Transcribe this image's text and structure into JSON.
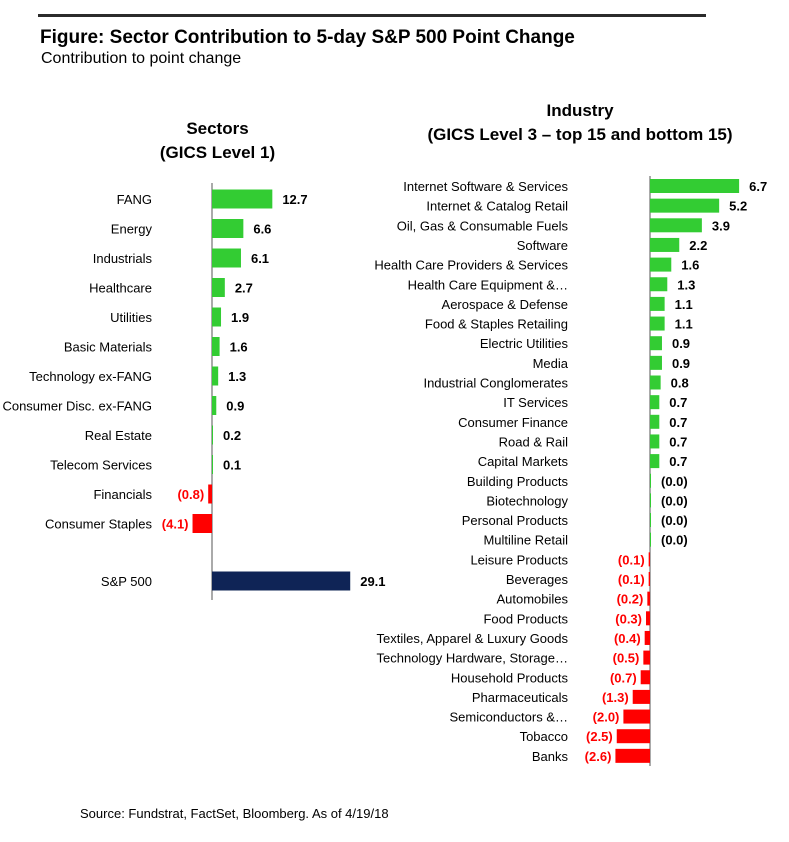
{
  "figure": {
    "title": "Figure: Sector Contribution to 5-day S&P 500 Point Change",
    "subtitle": "Contribution to point change",
    "source": "Source: Fundstrat, FactSet, Bloomberg. As of 4/19/18"
  },
  "colors": {
    "positive": "#33cc33",
    "negative": "#ff0000",
    "total": "#0f2456",
    "axis": "#555555",
    "rule": "#2b2b2b"
  },
  "chart_data": [
    {
      "type": "bar",
      "orientation": "horizontal",
      "title_line1": "Sectors",
      "title_line2": "(GICS Level 1)",
      "categories": [
        "FANG",
        "Energy",
        "Industrials",
        "Healthcare",
        "Utilities",
        "Basic Materials",
        "Technology ex-FANG",
        "Consumer Disc. ex-FANG",
        "Real Estate",
        "Telecom Services",
        "Financials",
        "Consumer Staples",
        "S&P 500"
      ],
      "values": [
        12.7,
        6.6,
        6.1,
        2.7,
        1.9,
        1.6,
        1.3,
        0.9,
        0.2,
        0.1,
        -0.8,
        -4.1,
        29.1
      ],
      "value_labels": [
        "12.7",
        "6.6",
        "6.1",
        "2.7",
        "1.9",
        "1.6",
        "1.3",
        "0.9",
        "0.2",
        "0.1",
        "(0.8)",
        "(4.1)",
        "29.1"
      ],
      "grid": false,
      "legend": "none"
    },
    {
      "type": "bar",
      "orientation": "horizontal",
      "title_line1": "Industry",
      "title_line2": "(GICS Level 3 – top 15 and bottom 15)",
      "categories": [
        "Internet Software & Services",
        "Internet & Catalog Retail",
        "Oil, Gas & Consumable Fuels",
        "Software",
        "Health Care Providers & Services",
        "Health Care Equipment &…",
        "Aerospace & Defense",
        "Food & Staples Retailing",
        "Electric Utilities",
        "Media",
        "Industrial Conglomerates",
        "IT Services",
        "Consumer Finance",
        "Road & Rail",
        "Capital Markets",
        "Building Products",
        "Biotechnology",
        "Personal Products",
        "Multiline Retail",
        "Leisure Products",
        "Beverages",
        "Automobiles",
        "Food Products",
        "Textiles, Apparel & Luxury Goods",
        "Technology Hardware, Storage…",
        "Household Products",
        "Pharmaceuticals",
        "Semiconductors &…",
        "Tobacco",
        "Banks"
      ],
      "values": [
        6.7,
        5.2,
        3.9,
        2.2,
        1.6,
        1.3,
        1.1,
        1.1,
        0.9,
        0.9,
        0.8,
        0.7,
        0.7,
        0.7,
        0.7,
        -0.0,
        -0.0,
        -0.0,
        -0.0,
        -0.1,
        -0.1,
        -0.2,
        -0.3,
        -0.4,
        -0.5,
        -0.7,
        -1.3,
        -2.0,
        -2.5,
        -2.6
      ],
      "value_labels": [
        "6.7",
        "5.2",
        "3.9",
        "2.2",
        "1.6",
        "1.3",
        "1.1",
        "1.1",
        "0.9",
        "0.9",
        "0.8",
        "0.7",
        "0.7",
        "0.7",
        "0.7",
        "(0.0)",
        "(0.0)",
        "(0.0)",
        "(0.0)",
        "(0.1)",
        "(0.1)",
        "(0.2)",
        "(0.3)",
        "(0.4)",
        "(0.5)",
        "(0.7)",
        "(1.3)",
        "(2.0)",
        "(2.5)",
        "(2.6)"
      ],
      "grid": false,
      "legend": "none"
    }
  ]
}
